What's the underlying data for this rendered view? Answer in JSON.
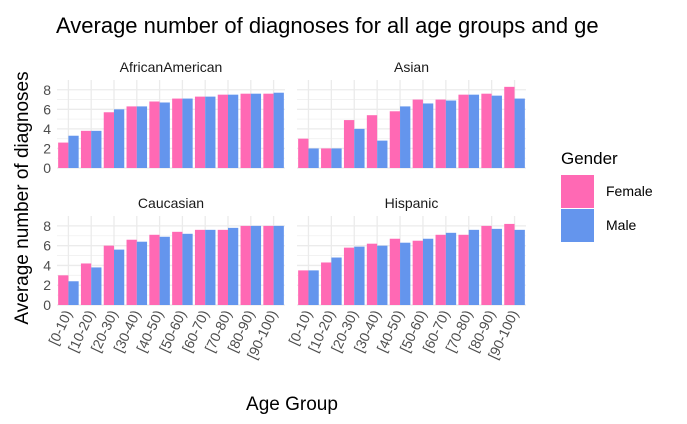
{
  "chart_data": {
    "type": "bar",
    "title": "Average number of diagnoses for all age groups and ge",
    "xlabel": "Age Group",
    "ylabel": "Average number of diagnoses",
    "ylim": [
      0,
      9
    ],
    "yticks": [
      0,
      2,
      4,
      6,
      8
    ],
    "grid": true,
    "legend": {
      "title": "Gender",
      "position": "right",
      "entries": [
        {
          "name": "Female",
          "color": "#ff69b4"
        },
        {
          "name": "Male",
          "color": "#6495ed"
        }
      ]
    },
    "categories": [
      "[0-10)",
      "[10-20)",
      "[20-30)",
      "[30-40)",
      "[40-50)",
      "[50-60)",
      "[60-70)",
      "[70-80)",
      "[80-90)",
      "[90-100)"
    ],
    "panels": [
      {
        "title": "AfricanAmerican",
        "series": [
          {
            "name": "Female",
            "values": [
              2.6,
              3.8,
              5.7,
              6.3,
              6.8,
              7.1,
              7.3,
              7.5,
              7.6,
              7.6
            ]
          },
          {
            "name": "Male",
            "values": [
              3.3,
              3.8,
              6.0,
              6.3,
              6.7,
              7.1,
              7.3,
              7.5,
              7.6,
              7.7
            ]
          }
        ]
      },
      {
        "title": "Asian",
        "series": [
          {
            "name": "Female",
            "values": [
              3.0,
              2.0,
              4.9,
              5.4,
              5.8,
              7.0,
              7.0,
              7.5,
              7.6,
              8.3
            ]
          },
          {
            "name": "Male",
            "values": [
              2.0,
              2.0,
              4.0,
              2.8,
              6.3,
              6.6,
              6.9,
              7.5,
              7.4,
              7.1
            ]
          }
        ]
      },
      {
        "title": "Caucasian",
        "series": [
          {
            "name": "Female",
            "values": [
              3.0,
              4.2,
              6.0,
              6.6,
              7.1,
              7.4,
              7.6,
              7.6,
              8.0,
              8.0
            ]
          },
          {
            "name": "Male",
            "values": [
              2.4,
              3.8,
              5.6,
              6.4,
              6.9,
              7.2,
              7.6,
              7.8,
              8.0,
              8.0
            ]
          }
        ]
      },
      {
        "title": "Hispanic",
        "series": [
          {
            "name": "Female",
            "values": [
              3.5,
              4.3,
              5.8,
              6.2,
              6.7,
              6.5,
              7.1,
              7.1,
              8.0,
              8.2
            ]
          },
          {
            "name": "Male",
            "values": [
              3.5,
              4.8,
              5.9,
              6.0,
              6.3,
              6.7,
              7.3,
              7.6,
              7.7,
              7.6
            ]
          }
        ]
      }
    ]
  }
}
